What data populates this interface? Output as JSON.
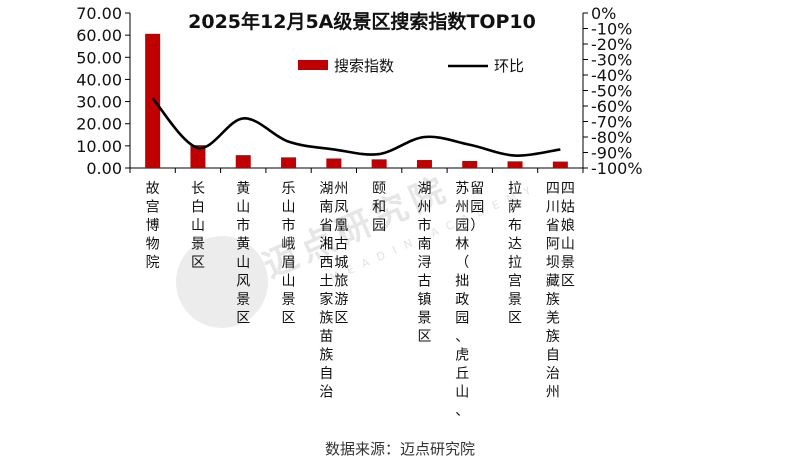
{
  "chart_data": {
    "type": "bar",
    "title": "2025年12月5A级景区搜索指数TOP10",
    "categories": [
      [
        "故宫博物院"
      ],
      [
        "长白山景区"
      ],
      [
        "黄山市黄山风景区"
      ],
      [
        "乐山市峨眉山景区"
      ],
      [
        "湖南省湘西土家族苗族自治",
        "州凤凰古城旅游区"
      ],
      [
        "颐和园"
      ],
      [
        "湖州市南浔古镇景区"
      ],
      [
        "苏州园林（拙政园、虎丘山、",
        "留园）"
      ],
      [
        "拉萨布达拉宫景区"
      ],
      [
        "四川省阿坝藏族羌族自治州",
        "四姑娘山景区"
      ]
    ],
    "series": [
      {
        "name": "搜索指数",
        "type": "bar",
        "axis": "left",
        "color": "#c00000",
        "values": [
          60.6,
          10.3,
          5.8,
          4.8,
          4.3,
          3.9,
          3.6,
          3.2,
          3.0,
          2.9
        ]
      },
      {
        "name": "环比",
        "type": "line",
        "axis": "right",
        "color": "#000000",
        "values": [
          -55,
          -87,
          -68,
          -83,
          -88,
          -91,
          -80,
          -85,
          -92,
          -88
        ]
      }
    ],
    "y_left": {
      "min": 0,
      "max": 70,
      "step": 10,
      "ticks": [
        "0.00",
        "10.00",
        "20.00",
        "30.00",
        "40.00",
        "50.00",
        "60.00",
        "70.00"
      ]
    },
    "y_right": {
      "min": -100,
      "max": 0,
      "step": 10,
      "ticks": [
        "0%",
        "-10%",
        "-20%",
        "-30%",
        "-40%",
        "-50%",
        "-60%",
        "-70%",
        "-80%",
        "-90%",
        "-100%"
      ]
    },
    "legend": {
      "position": "top"
    },
    "grid": false
  },
  "source": "数据来源：迈点研究院",
  "watermark": {
    "text": "迈点研究院",
    "sub": "MEADIN ACADEMY"
  }
}
